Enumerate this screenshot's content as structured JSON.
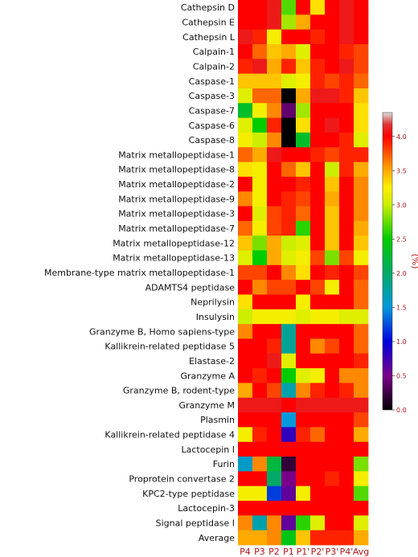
{
  "chart_data": {
    "type": "heatmap",
    "title": "",
    "xlabel": "",
    "ylabel": "",
    "x_categories": [
      "P4",
      "P3",
      "P2",
      "P1",
      "P1'",
      "P2'",
      "P3'",
      "P4'",
      "Avg"
    ],
    "y_categories": [
      "Cathepsin D",
      "Cathepsin E",
      "Cathepsin L",
      "Calpain-1",
      "Calpain-2",
      "Caspase-1",
      "Caspase-3",
      "Caspase-7",
      "Caspase-6",
      "Caspase-8",
      "Matrix metallopeptidase-1",
      "Matrix metallopeptidase-8",
      "Matrix metallopeptidase-2",
      "Matrix metallopeptidase-9",
      "Matrix metallopeptidase-3",
      "Matrix metallopeptidase-7",
      "Matrix metallopeptidase-12",
      "Matrix metallopeptidase-13",
      "Membrane-type matrix metallopeptidase-1",
      "ADAMTS4 peptidase",
      "Neprilysin",
      "Insulysin",
      "Granzyme B, Homo sapiens-type",
      "Kallikrein-related peptidase 5",
      "Elastase-2",
      "Granzyme A",
      "Granzyme B, rodent-type",
      "Granzyme M",
      "Plasmin",
      "Kallikrein-related peptidase 4",
      "Lactocepin I",
      "Furin",
      "Proprotein convertase 2",
      "KPC2-type peptidase",
      "Lactocepin-3",
      "Signal peptidase I",
      "Average"
    ],
    "values": [
      [
        4.0,
        4.0,
        4.1,
        2.7,
        4.0,
        3.3,
        4.0,
        4.1,
        4.0
      ],
      [
        4.0,
        4.0,
        4.1,
        2.9,
        3.5,
        4.0,
        4.0,
        4.1,
        4.0
      ],
      [
        4.1,
        3.9,
        3.2,
        4.0,
        4.0,
        3.9,
        4.0,
        4.1,
        4.0
      ],
      [
        4.0,
        3.7,
        3.4,
        3.5,
        3.1,
        4.0,
        4.0,
        3.9,
        3.8
      ],
      [
        3.9,
        4.1,
        3.5,
        3.9,
        3.4,
        3.9,
        4.0,
        4.1,
        3.8
      ],
      [
        3.4,
        3.4,
        3.4,
        3.1,
        3.2,
        3.9,
        3.8,
        3.9,
        3.7
      ],
      [
        3.1,
        3.7,
        3.7,
        0.0,
        3.5,
        4.1,
        4.1,
        3.9,
        3.4
      ],
      [
        2.3,
        3.2,
        3.6,
        0.4,
        2.9,
        4.0,
        4.0,
        4.0,
        3.3
      ],
      [
        3.1,
        2.5,
        3.9,
        0.0,
        3.3,
        4.0,
        4.1,
        4.0,
        3.3
      ],
      [
        3.2,
        3.0,
        3.6,
        0.0,
        2.3,
        4.0,
        4.0,
        3.9,
        3.1
      ],
      [
        3.7,
        3.5,
        4.1,
        4.0,
        4.0,
        3.9,
        3.8,
        3.9,
        3.9
      ],
      [
        3.3,
        3.2,
        4.0,
        3.7,
        3.4,
        4.0,
        3.0,
        3.9,
        3.5
      ],
      [
        4.0,
        3.2,
        4.0,
        4.0,
        3.9,
        4.0,
        3.4,
        4.0,
        3.6
      ],
      [
        3.6,
        3.2,
        4.0,
        3.9,
        3.8,
        4.0,
        3.5,
        4.0,
        3.6
      ],
      [
        4.0,
        3.1,
        3.8,
        3.9,
        3.7,
        4.0,
        3.4,
        4.0,
        3.6
      ],
      [
        3.7,
        3.2,
        3.8,
        3.9,
        2.6,
        4.0,
        3.4,
        4.0,
        3.5
      ],
      [
        3.4,
        2.8,
        3.5,
        3.0,
        3.1,
        4.0,
        3.4,
        4.0,
        3.4
      ],
      [
        3.1,
        2.5,
        3.5,
        3.1,
        3.2,
        3.8,
        2.8,
        3.8,
        3.2
      ],
      [
        3.8,
        3.8,
        4.0,
        3.6,
        3.3,
        4.0,
        3.9,
        4.0,
        3.8
      ],
      [
        4.0,
        3.6,
        3.8,
        3.8,
        4.0,
        3.8,
        3.2,
        4.0,
        3.7
      ],
      [
        3.3,
        4.0,
        4.0,
        4.0,
        3.2,
        4.0,
        4.0,
        4.0,
        3.7
      ],
      [
        3.0,
        3.2,
        3.2,
        3.2,
        3.1,
        3.2,
        3.2,
        3.1,
        3.1
      ],
      [
        3.6,
        4.0,
        4.0,
        1.8,
        4.0,
        4.0,
        4.0,
        4.0,
        3.7
      ],
      [
        4.0,
        4.0,
        3.9,
        1.8,
        4.0,
        3.6,
        3.8,
        4.0,
        3.7
      ],
      [
        4.0,
        4.0,
        4.1,
        3.1,
        4.0,
        4.0,
        4.0,
        4.0,
        3.9
      ],
      [
        4.0,
        3.9,
        4.0,
        2.5,
        3.1,
        3.2,
        4.0,
        3.6,
        3.6
      ],
      [
        3.5,
        4.0,
        3.8,
        1.7,
        3.6,
        3.9,
        4.0,
        3.9,
        3.6
      ],
      [
        4.1,
        4.1,
        4.1,
        4.0,
        4.1,
        4.1,
        4.1,
        4.1,
        4.1
      ],
      [
        4.0,
        4.0,
        4.0,
        1.5,
        4.0,
        4.0,
        4.0,
        4.0,
        3.8
      ],
      [
        3.2,
        3.9,
        4.0,
        0.8,
        3.9,
        3.7,
        4.0,
        4.0,
        3.5
      ],
      [
        4.0,
        4.0,
        4.0,
        4.0,
        4.0,
        4.0,
        4.0,
        4.0,
        4.0
      ],
      [
        1.6,
        3.6,
        2.2,
        0.2,
        4.0,
        4.0,
        4.0,
        4.0,
        2.8
      ],
      [
        4.0,
        4.0,
        2.0,
        0.5,
        4.0,
        4.0,
        3.9,
        4.0,
        3.2
      ],
      [
        3.2,
        3.2,
        1.2,
        0.6,
        3.2,
        4.0,
        4.0,
        4.0,
        2.7
      ],
      [
        4.0,
        4.0,
        4.0,
        4.0,
        4.0,
        4.0,
        4.0,
        4.0,
        4.0
      ],
      [
        3.6,
        1.7,
        3.6,
        0.6,
        2.6,
        3.1,
        4.0,
        4.0,
        3.1
      ],
      [
        3.5,
        3.5,
        3.6,
        2.4,
        3.4,
        3.9,
        3.9,
        3.9,
        3.5
      ]
    ],
    "colorbar": {
      "label": "(%)",
      "vmin": 0.0,
      "vmax": 4.35,
      "ticks": [
        "0.0",
        "0.5",
        "1.0",
        "1.5",
        "2.0",
        "2.5",
        "3.0",
        "3.5",
        "4.0"
      ],
      "colormap": "nipy_spectral-like"
    },
    "grid": false
  }
}
